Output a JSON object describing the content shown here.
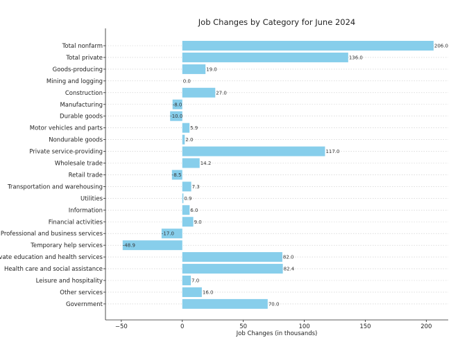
{
  "chart_data": {
    "type": "bar",
    "orientation": "horizontal",
    "title": "Job Changes by Category for June 2024",
    "xlabel": "Job Changes (in thousands)",
    "ylabel": "",
    "xlim": [
      -63,
      218
    ],
    "xticks": [
      -50,
      0,
      50,
      100,
      150,
      200
    ],
    "grid": "horizontal dotted",
    "bar_color": "#87ceeb",
    "categories": [
      "Total nonfarm",
      "Total private",
      "Goods-producing",
      "Mining and logging",
      "Construction",
      "Manufacturing",
      "Durable goods",
      "Motor vehicles and parts",
      "Nondurable goods",
      "Private service-providing",
      "Wholesale trade",
      "Retail trade",
      "Transportation and warehousing",
      "Utilities",
      "Information",
      "Financial activities",
      "Professional and business services",
      "Temporary help services",
      "Private education and health services",
      "Health care and social assistance",
      "Leisure and hospitality",
      "Other services",
      "Government"
    ],
    "values": [
      206.0,
      136.0,
      19.0,
      0.0,
      27.0,
      -8.0,
      -10.0,
      5.9,
      2.0,
      117.0,
      14.2,
      -8.5,
      7.3,
      0.9,
      6.0,
      9.0,
      -17.0,
      -48.9,
      82.0,
      82.4,
      7.0,
      16.0,
      70.0
    ],
    "value_labels": [
      "206.0",
      "136.0",
      "19.0",
      "0.0",
      "27.0",
      "-8.0",
      "-10.0",
      "5.9",
      "2.0",
      "117.0",
      "14.2",
      "-8.5",
      "7.3",
      "0.9",
      "6.0",
      "9.0",
      "-17.0",
      "-48.9",
      "82.0",
      "82.4",
      "7.0",
      "16.0",
      "70.0"
    ]
  }
}
